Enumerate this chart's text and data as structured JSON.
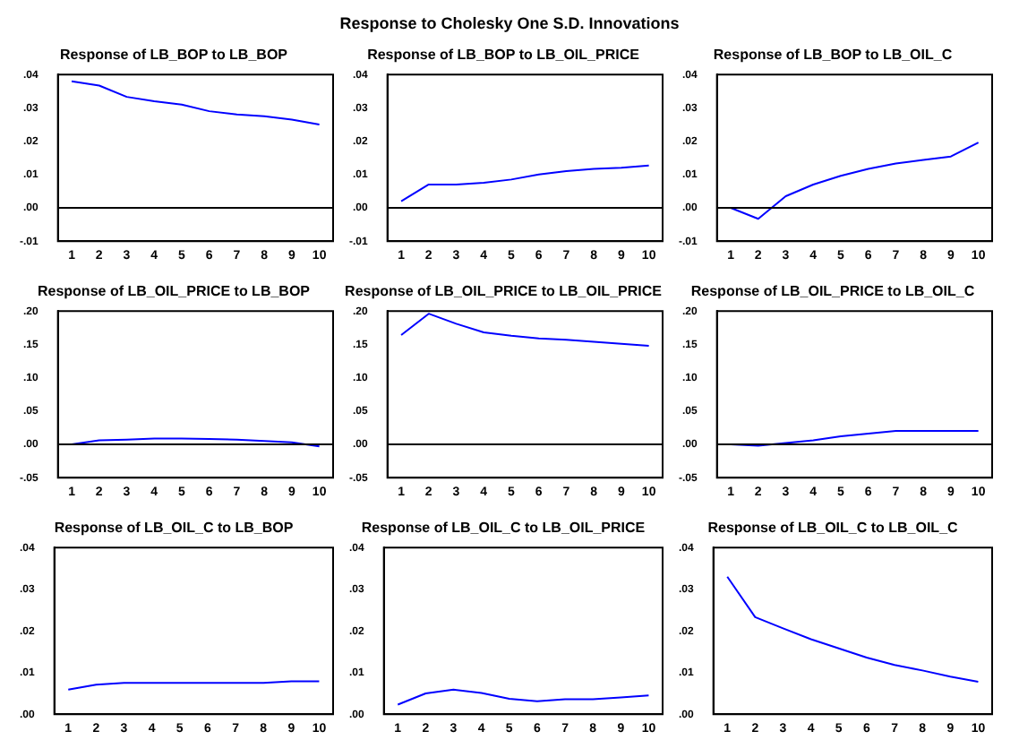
{
  "chart_data": [
    {
      "type": "other",
      "title": "Response to Cholesky One S.D. Innovations"
    },
    {
      "type": "line",
      "title": "Response of LB_BOP to LB_BOP",
      "categories": [
        "1",
        "2",
        "3",
        "4",
        "5",
        "6",
        "7",
        "8",
        "9",
        "10"
      ],
      "series": [
        {
          "color": "#0000ff",
          "values": [
            0.038,
            0.0367,
            0.0333,
            0.032,
            0.031,
            0.029,
            0.028,
            0.0275,
            0.0265,
            0.025
          ]
        }
      ],
      "ylim": [
        -0.01,
        0.04
      ],
      "yticks": [
        {
          "value": -0.01,
          "label": "-.01"
        },
        {
          "value": 0,
          "label": ".00"
        },
        {
          "value": 0.01,
          "label": ".01"
        },
        {
          "value": 0.02,
          "label": ".02"
        },
        {
          "value": 0.03,
          "label": ".03"
        },
        {
          "value": 0.04,
          "label": ".04"
        }
      ],
      "ref_lines": [
        {
          "axis": "y",
          "value": 0,
          "color": "#000000"
        }
      ],
      "grid": false,
      "legend": false
    },
    {
      "type": "line",
      "title": "Response of LB_BOP to LB_OIL_PRICE",
      "categories": [
        "1",
        "2",
        "3",
        "4",
        "5",
        "6",
        "7",
        "8",
        "9",
        "10"
      ],
      "series": [
        {
          "color": "#0000ff",
          "values": [
            0.002,
            0.007,
            0.007,
            0.0075,
            0.0085,
            0.01,
            0.011,
            0.0117,
            0.012,
            0.0127
          ]
        }
      ],
      "ylim": [
        -0.01,
        0.04
      ],
      "yticks": [
        {
          "value": -0.01,
          "label": "-.01"
        },
        {
          "value": 0,
          "label": ".00"
        },
        {
          "value": 0.01,
          "label": ".01"
        },
        {
          "value": 0.02,
          "label": ".02"
        },
        {
          "value": 0.03,
          "label": ".03"
        },
        {
          "value": 0.04,
          "label": ".04"
        }
      ],
      "ref_lines": [
        {
          "axis": "y",
          "value": 0,
          "color": "#000000"
        }
      ],
      "grid": false,
      "legend": false
    },
    {
      "type": "line",
      "title": "Response of LB_BOP to LB_OIL_C",
      "categories": [
        "1",
        "2",
        "3",
        "4",
        "5",
        "6",
        "7",
        "8",
        "9",
        "10"
      ],
      "series": [
        {
          "color": "#0000ff",
          "values": [
            0,
            -0.0033,
            0.0035,
            0.007,
            0.0096,
            0.0117,
            0.0133,
            0.0144,
            0.0154,
            0.0196
          ]
        }
      ],
      "ylim": [
        -0.01,
        0.04
      ],
      "yticks": [
        {
          "value": -0.01,
          "label": "-.01"
        },
        {
          "value": 0,
          "label": ".00"
        },
        {
          "value": 0.01,
          "label": ".01"
        },
        {
          "value": 0.02,
          "label": ".02"
        },
        {
          "value": 0.03,
          "label": ".03"
        },
        {
          "value": 0.04,
          "label": ".04"
        }
      ],
      "ref_lines": [
        {
          "axis": "y",
          "value": 0,
          "color": "#000000"
        }
      ],
      "grid": false,
      "legend": false
    },
    {
      "type": "line",
      "title": "Response of LB_OIL_PRICE to LB_BOP",
      "categories": [
        "1",
        "2",
        "3",
        "4",
        "5",
        "6",
        "7",
        "8",
        "9",
        "10"
      ],
      "series": [
        {
          "color": "#0000ff",
          "values": [
            0,
            0.006,
            0.007,
            0.0087,
            0.0087,
            0.008,
            0.007,
            0.005,
            0.003,
            -0.003
          ]
        }
      ],
      "ylim": [
        -0.05,
        0.2
      ],
      "yticks": [
        {
          "value": -0.05,
          "label": "-.05"
        },
        {
          "value": 0,
          "label": ".00"
        },
        {
          "value": 0.05,
          "label": ".05"
        },
        {
          "value": 0.1,
          "label": ".10"
        },
        {
          "value": 0.15,
          "label": ".15"
        },
        {
          "value": 0.2,
          "label": ".20"
        }
      ],
      "ref_lines": [
        {
          "axis": "y",
          "value": 0,
          "color": "#000000"
        }
      ],
      "grid": false,
      "legend": false
    },
    {
      "type": "line",
      "title": "Response of LB_OIL_PRICE to LB_OIL_PRICE",
      "categories": [
        "1",
        "2",
        "3",
        "4",
        "5",
        "6",
        "7",
        "8",
        "9",
        "10"
      ],
      "series": [
        {
          "color": "#0000ff",
          "values": [
            0.164,
            0.196,
            0.181,
            0.168,
            0.163,
            0.159,
            0.157,
            0.154,
            0.151,
            0.148
          ]
        }
      ],
      "ylim": [
        -0.05,
        0.2
      ],
      "yticks": [
        {
          "value": -0.05,
          "label": "-.05"
        },
        {
          "value": 0,
          "label": ".00"
        },
        {
          "value": 0.05,
          "label": ".05"
        },
        {
          "value": 0.1,
          "label": ".10"
        },
        {
          "value": 0.15,
          "label": ".15"
        },
        {
          "value": 0.2,
          "label": ".20"
        }
      ],
      "ref_lines": [
        {
          "axis": "y",
          "value": 0,
          "color": "#000000"
        }
      ],
      "grid": false,
      "legend": false
    },
    {
      "type": "line",
      "title": "Response of LB_OIL_PRICE to LB_OIL_C",
      "categories": [
        "1",
        "2",
        "3",
        "4",
        "5",
        "6",
        "7",
        "8",
        "9",
        "10"
      ],
      "series": [
        {
          "color": "#0000ff",
          "values": [
            0,
            -0.002,
            0.002,
            0.006,
            0.012,
            0.016,
            0.02,
            0.02,
            0.02,
            0.02
          ]
        }
      ],
      "ylim": [
        -0.05,
        0.2
      ],
      "yticks": [
        {
          "value": -0.05,
          "label": "-.05"
        },
        {
          "value": 0,
          "label": ".00"
        },
        {
          "value": 0.05,
          "label": ".05"
        },
        {
          "value": 0.1,
          "label": ".10"
        },
        {
          "value": 0.15,
          "label": ".15"
        },
        {
          "value": 0.2,
          "label": ".20"
        }
      ],
      "ref_lines": [
        {
          "axis": "y",
          "value": 0,
          "color": "#000000"
        }
      ],
      "grid": false,
      "legend": false
    },
    {
      "type": "line",
      "title": "Response of LB_OIL_C to LB_BOP",
      "categories": [
        "1",
        "2",
        "3",
        "4",
        "5",
        "6",
        "7",
        "8",
        "9",
        "10"
      ],
      "series": [
        {
          "color": "#0000ff",
          "values": [
            0.0059,
            0.0071,
            0.0075,
            0.0075,
            0.0075,
            0.0075,
            0.0075,
            0.0075,
            0.0079,
            0.0079
          ]
        }
      ],
      "ylim": [
        0,
        0.04
      ],
      "yticks": [
        {
          "value": 0,
          "label": ".00"
        },
        {
          "value": 0.01,
          "label": ".01"
        },
        {
          "value": 0.02,
          "label": ".02"
        },
        {
          "value": 0.03,
          "label": ".03"
        },
        {
          "value": 0.04,
          "label": ".04"
        }
      ],
      "grid": false,
      "legend": false
    },
    {
      "type": "line",
      "title": "Response of LB_OIL_C to LB_OIL_PRICE",
      "categories": [
        "1",
        "2",
        "3",
        "4",
        "5",
        "6",
        "7",
        "8",
        "9",
        "10"
      ],
      "series": [
        {
          "color": "#0000ff",
          "values": [
            0.0023,
            0.005,
            0.0059,
            0.0051,
            0.0037,
            0.0031,
            0.0036,
            0.0036,
            0.004,
            0.0045
          ]
        }
      ],
      "ylim": [
        0,
        0.04
      ],
      "yticks": [
        {
          "value": 0,
          "label": ".00"
        },
        {
          "value": 0.01,
          "label": ".01"
        },
        {
          "value": 0.02,
          "label": ".02"
        },
        {
          "value": 0.03,
          "label": ".03"
        },
        {
          "value": 0.04,
          "label": ".04"
        }
      ],
      "grid": false,
      "legend": false
    },
    {
      "type": "line",
      "title": "Response of LB_OIL_C to LB_OIL_C",
      "categories": [
        "1",
        "2",
        "3",
        "4",
        "5",
        "6",
        "7",
        "8",
        "9",
        "10"
      ],
      "series": [
        {
          "color": "#0000ff",
          "values": [
            0.033,
            0.0233,
            0.0206,
            0.018,
            0.0158,
            0.0136,
            0.0118,
            0.0105,
            0.009,
            0.0078
          ]
        }
      ],
      "ylim": [
        0,
        0.04
      ],
      "yticks": [
        {
          "value": 0,
          "label": ".00"
        },
        {
          "value": 0.01,
          "label": ".01"
        },
        {
          "value": 0.02,
          "label": ".02"
        },
        {
          "value": 0.03,
          "label": ".03"
        },
        {
          "value": 0.04,
          "label": ".04"
        }
      ],
      "grid": false,
      "legend": false
    }
  ]
}
